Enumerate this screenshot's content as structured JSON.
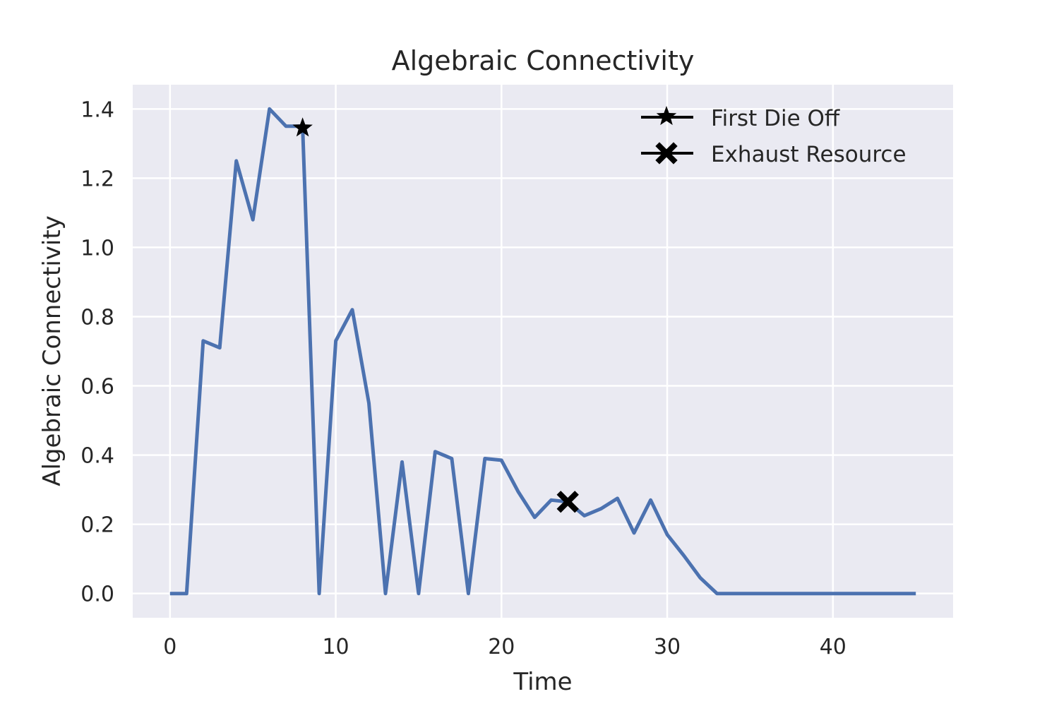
{
  "chart_data": {
    "type": "line",
    "title": "Algebraic Connectivity",
    "xlabel": "Time",
    "ylabel": "Algebraic Connectivity",
    "xlim": [
      -2.25,
      47.25
    ],
    "ylim": [
      -0.07,
      1.47
    ],
    "xticks": [
      0,
      10,
      20,
      30,
      40
    ],
    "xtick_labels": [
      "0",
      "10",
      "20",
      "30",
      "40"
    ],
    "yticks": [
      0.0,
      0.2,
      0.4,
      0.6,
      0.8,
      1.0,
      1.2,
      1.4
    ],
    "ytick_labels": [
      "0.0",
      "0.2",
      "0.4",
      "0.6",
      "0.8",
      "1.0",
      "1.2",
      "1.4"
    ],
    "grid": true,
    "legend_position": "top-right",
    "colors": {
      "line": "#4c72b0",
      "background": "#eaeaf2",
      "grid": "#ffffff",
      "marker": "#000000"
    },
    "series": [
      {
        "x": [
          0,
          1,
          2,
          3,
          4,
          5,
          6,
          7,
          8,
          9,
          10,
          11,
          12,
          13,
          14,
          15,
          16,
          17,
          18,
          19,
          20,
          21,
          22,
          23,
          24,
          25,
          26,
          27,
          28,
          29,
          30,
          31,
          32,
          33,
          34,
          35,
          36,
          37,
          38,
          39,
          40,
          41,
          42,
          43,
          44,
          45
        ],
        "y": [
          0.0,
          0.0,
          0.73,
          0.71,
          1.25,
          1.08,
          1.4,
          1.35,
          1.35,
          0.0,
          0.73,
          0.82,
          0.55,
          0.0,
          0.38,
          0.0,
          0.41,
          0.39,
          0.0,
          0.39,
          0.385,
          0.295,
          0.22,
          0.27,
          0.265,
          0.225,
          0.245,
          0.275,
          0.175,
          0.27,
          0.17,
          0.11,
          0.045,
          0.0,
          0.0,
          0.0,
          0.0,
          0.0,
          0.0,
          0.0,
          0.0,
          0.0,
          0.0,
          0.0,
          0.0,
          0.0
        ]
      }
    ],
    "markers": [
      {
        "label": "First Die Off",
        "symbol": "star-icon",
        "x": 8,
        "y": 1.345
      },
      {
        "label": "Exhaust Resource",
        "symbol": "x-icon",
        "x": 24,
        "y": 0.265
      }
    ]
  }
}
